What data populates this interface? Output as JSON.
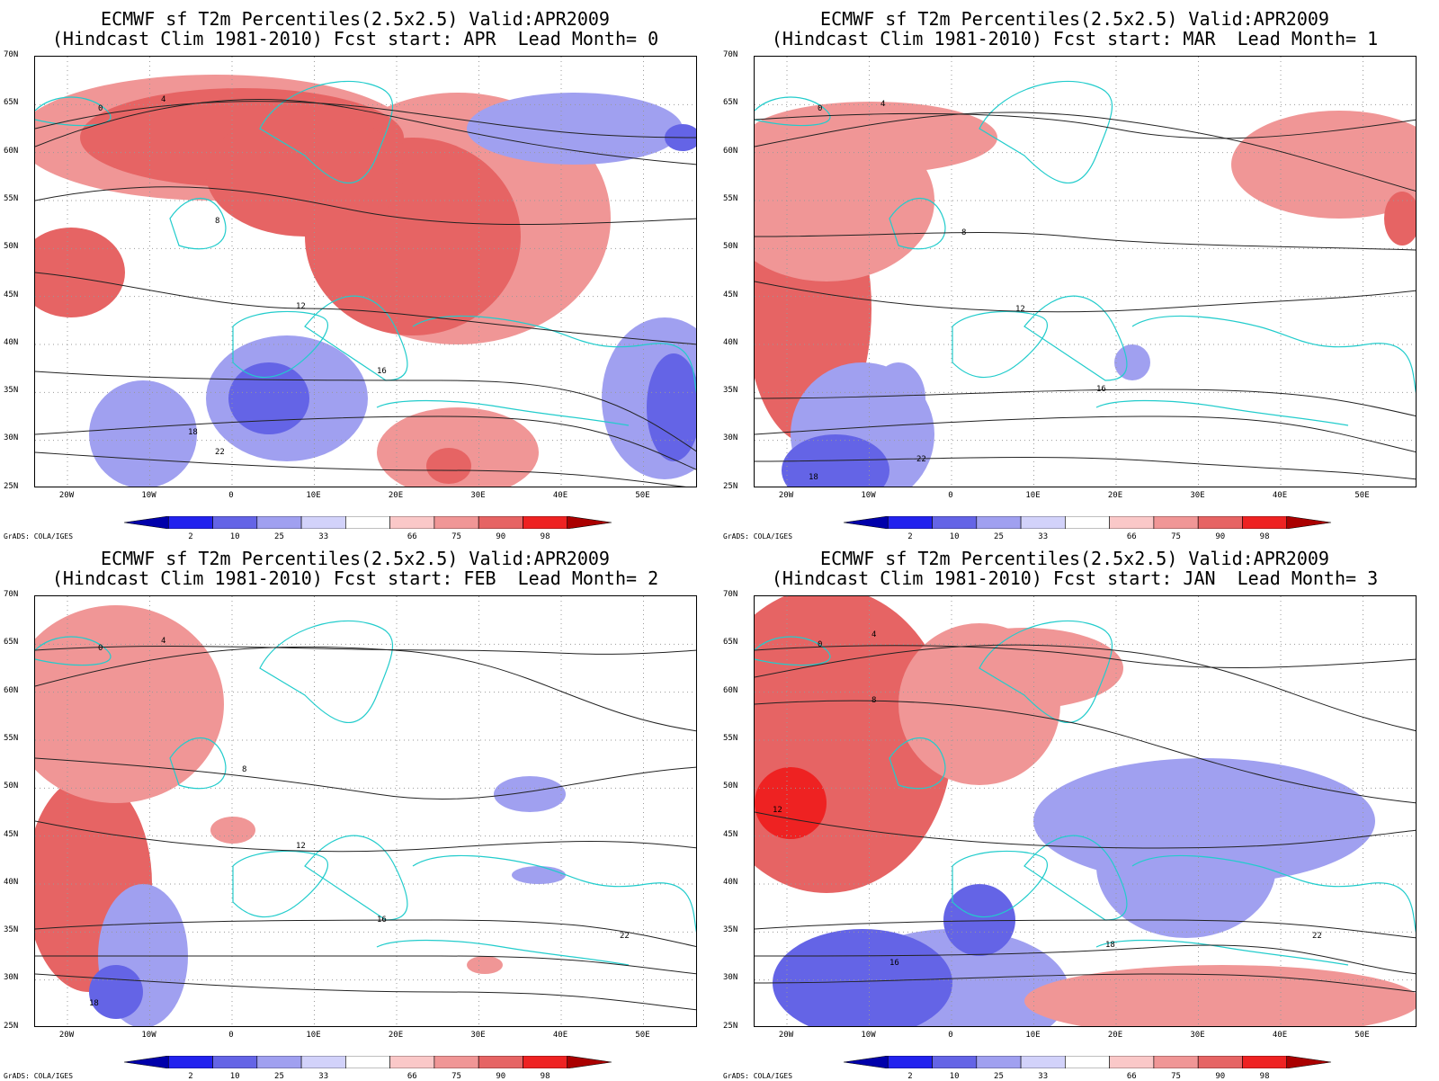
{
  "panels": [
    {
      "title1": "ECMWF sf T2m Percentiles(2.5x2.5) Valid:APR2009",
      "title2": "(Hindcast Clim 1981-2010) Fcst start: APR  Lead Month= 0"
    },
    {
      "title1": "ECMWF sf T2m Percentiles(2.5x2.5) Valid:APR2009",
      "title2": "(Hindcast Clim 1981-2010) Fcst start: MAR  Lead Month= 1"
    },
    {
      "title1": "ECMWF sf T2m Percentiles(2.5x2.5) Valid:APR2009",
      "title2": "(Hindcast Clim 1981-2010) Fcst start: FEB  Lead Month= 2"
    },
    {
      "title1": "ECMWF sf T2m Percentiles(2.5x2.5) Valid:APR2009",
      "title2": "(Hindcast Clim 1981-2010) Fcst start: JAN  Lead Month= 3"
    }
  ],
  "lat_labels": [
    "70N",
    "65N",
    "60N",
    "55N",
    "50N",
    "45N",
    "40N",
    "35N",
    "30N",
    "25N"
  ],
  "lon_labels": [
    "20W",
    "10W",
    "0",
    "10E",
    "20E",
    "30E",
    "40E",
    "50E"
  ],
  "colorbar_labels": [
    "2",
    "10",
    "25",
    "33",
    "66",
    "75",
    "90",
    "98"
  ],
  "colorbar_colors": [
    "#0000aa",
    "#2222ee",
    "#6464e6",
    "#a0a0f0",
    "#d2d2fa",
    "#ffffff",
    "#fac8c8",
    "#f09696",
    "#e66464",
    "#ee2222",
    "#aa0000"
  ],
  "grads_credit": "GrADS: COLA/IGES",
  "contour_labels": [
    "0",
    "4",
    "8",
    "12",
    "16",
    "18",
    "22"
  ]
}
